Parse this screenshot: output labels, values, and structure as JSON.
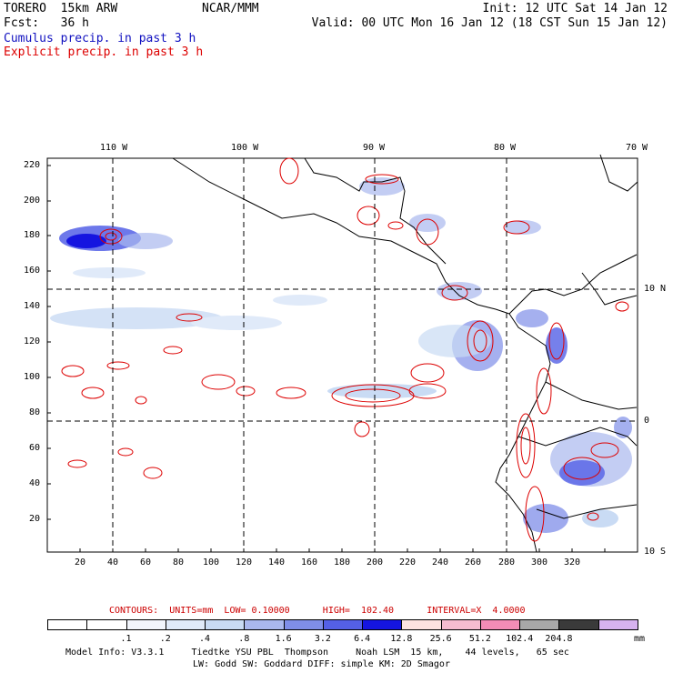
{
  "header": {
    "model": "TORERO  15km ARW",
    "org": "NCAR/MMM",
    "init": "Init: 12 UTC Sat 14 Jan 12",
    "fcst": "Fcst:   36 h",
    "valid": "Valid: 00 UTC Mon 16 Jan 12 (18 CST Sun 15 Jan 12)",
    "legend_cumulus": "Cumulus precip. in past 3 h",
    "legend_explicit": "Explicit precip. in past 3 h",
    "cumulus_color": "#0000cc",
    "explicit_color": "#dd0000"
  },
  "axes": {
    "top_labels": [
      "110 W",
      "100 W",
      "90 W",
      "80 W",
      "70 W"
    ],
    "right_labels": [
      "10 N",
      "0",
      "10 S"
    ],
    "left_labels": [
      "220",
      "200",
      "180",
      "160",
      "140",
      "120",
      "100",
      "80",
      "60",
      "40",
      "20"
    ],
    "bottom_labels": [
      "20",
      "40",
      "60",
      "80",
      "100",
      "120",
      "140",
      "160",
      "180",
      "200",
      "220",
      "240",
      "260",
      "280",
      "300",
      "320"
    ]
  },
  "contours": {
    "text": "CONTOURS:  UNITS=mm  LOW= 0.10000      HIGH=  102.40      INTERVAL=X  4.0000",
    "color": "#cc0000"
  },
  "colorbar": {
    "colors": [
      "#ffffff",
      "#ffffff",
      "#f2f5fc",
      "#e0eaf9",
      "#c9dbf4",
      "#aab8ee",
      "#7f8ee8",
      "#5460e6",
      "#1515e0",
      "#fde2e0",
      "#f6bcd0",
      "#f28cb6",
      "#a8a8a8",
      "#3a3a3a",
      "#d7b2ef"
    ],
    "labels": [
      ".1",
      ".2",
      ".4",
      ".8",
      "1.6",
      "3.2",
      "6.4",
      "12.8",
      "25.6",
      "51.2",
      "102.4",
      "204.8"
    ],
    "units": "mm"
  },
  "footer": {
    "line1": "Model Info: V3.3.1     Tiedtke YSU PBL  Thompson     Noah LSM  15 km,    44 levels,   65 sec",
    "line2": "LW: Godd SW: Goddard DIFF: simple KM: 2D Smagor"
  }
}
